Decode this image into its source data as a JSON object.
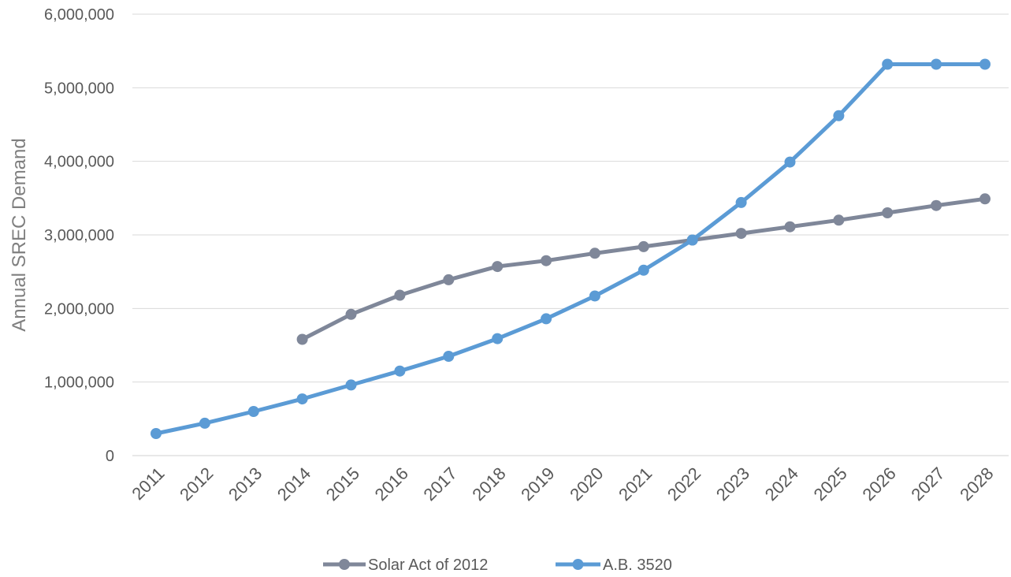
{
  "chart_data": {
    "type": "line",
    "title": "",
    "xlabel": "",
    "ylabel": "Annual SREC Demand",
    "ylim": [
      0,
      6000000
    ],
    "yticks": [
      0,
      1000000,
      2000000,
      3000000,
      4000000,
      5000000,
      6000000
    ],
    "ytick_labels": [
      "0",
      "1,000,000",
      "2,000,000",
      "3,000,000",
      "4,000,000",
      "5,000,000",
      "6,000,000"
    ],
    "categories": [
      "2011",
      "2012",
      "2013",
      "2014",
      "2015",
      "2016",
      "2017",
      "2018",
      "2019",
      "2020",
      "2021",
      "2022",
      "2023",
      "2024",
      "2025",
      "2026",
      "2027",
      "2028"
    ],
    "grid": "horizontal",
    "legend_position": "bottom",
    "series": [
      {
        "name": "Solar Act of 2012",
        "color": "#7f8799",
        "values": [
          null,
          null,
          null,
          1580000,
          1920000,
          2180000,
          2390000,
          2570000,
          2650000,
          2750000,
          2840000,
          2930000,
          3020000,
          3110000,
          3200000,
          3300000,
          3400000,
          3490000
        ]
      },
      {
        "name": "A.B. 3520",
        "color": "#5b9bd5",
        "values": [
          300000,
          440000,
          600000,
          770000,
          960000,
          1150000,
          1350000,
          1590000,
          1860000,
          2170000,
          2520000,
          2930000,
          3440000,
          3990000,
          4620000,
          5320000,
          5320000,
          5320000
        ]
      }
    ]
  }
}
